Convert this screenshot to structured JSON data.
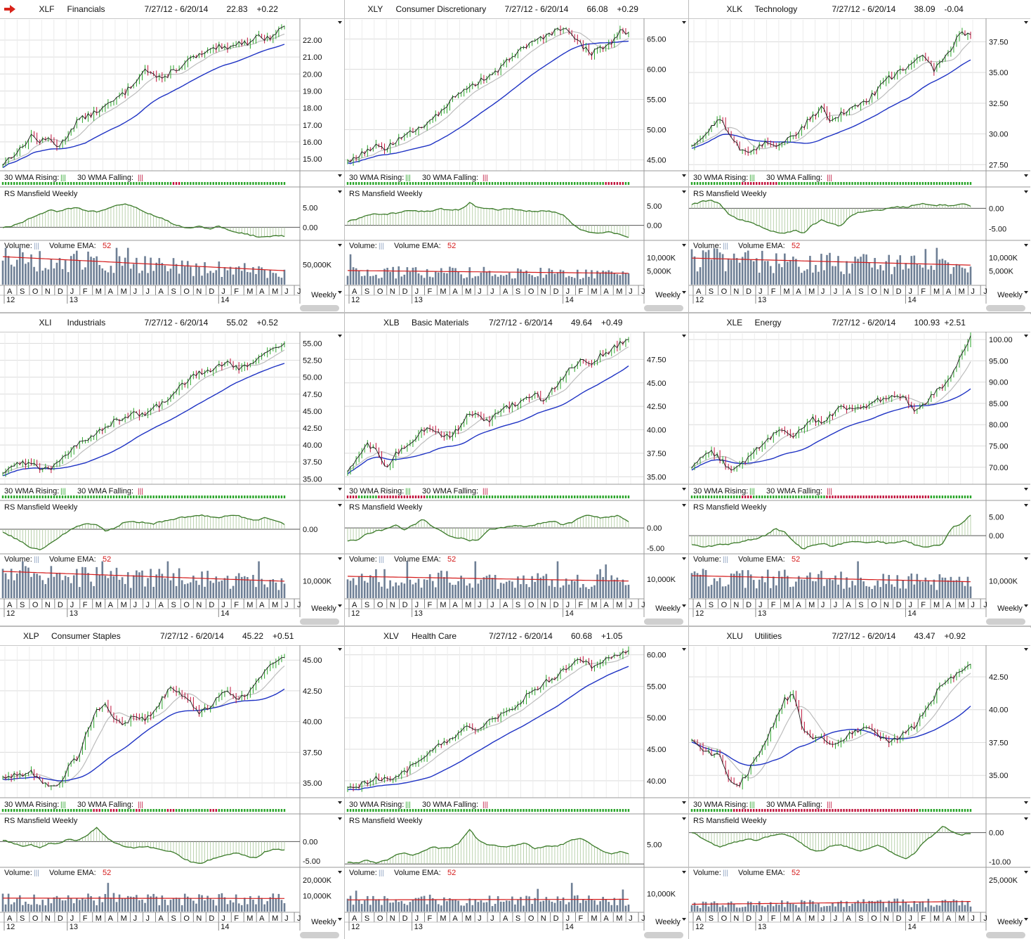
{
  "date_range": "7/27/12 - 6/20/14",
  "labels": {
    "wma_rising": "30 WMA Rising:",
    "wma_falling": "30 WMA Falling:",
    "rs": "RS Mansfield Weekly",
    "volume": "Volume:",
    "volume_ema": "Volume EMA:",
    "ema_period": "52",
    "period": "Weekly"
  },
  "x_axis": {
    "months": [
      "A",
      "S",
      "O",
      "N",
      "D",
      "J",
      "F",
      "M",
      "A",
      "M",
      "J",
      "J",
      "A",
      "S",
      "O",
      "N",
      "D",
      "J",
      "F",
      "M",
      "A",
      "M",
      "J",
      "J"
    ],
    "years": [
      "12",
      "13",
      "14"
    ]
  },
  "colors": {
    "price_ma_fast": "#bdbdbd",
    "price_ma_slow": "#1f33c4",
    "up_bar": "#2aa52a",
    "down_bar": "#c0143c",
    "rs_line": "#3a7a28",
    "volume_bar": "#6e7f95",
    "volume_ema": "#d41a1a",
    "alert_arrow": "#d9241b"
  },
  "chart_data": [
    {
      "type": "line",
      "symbol": "XLF",
      "name": "Financials",
      "last": "22.83",
      "change": "+0.22",
      "flag": true,
      "prices": [
        14.7,
        15.2,
        15.6,
        16.4,
        16.0,
        16.2,
        15.7,
        16.5,
        17.3,
        17.5,
        17.8,
        18.1,
        18.5,
        18.9,
        19.5,
        20.3,
        20.0,
        19.6,
        20.2,
        20.4,
        20.9,
        21.1,
        21.3,
        21.6,
        21.4,
        21.9,
        21.8,
        22.3,
        22.0,
        22.4,
        22.83
      ],
      "price_ticks": [
        "22.00",
        "21.00",
        "20.00",
        "19.00",
        "18.00",
        "17.00",
        "16.00",
        "15.00"
      ],
      "price_tick_values": [
        22,
        21,
        20,
        19,
        18,
        17,
        16,
        15
      ],
      "price_range": [
        14.3,
        23.2
      ],
      "wma_falling_weeks": [
        60,
        61,
        62
      ],
      "rs": [
        -0.2,
        0.3,
        1.2,
        2.5,
        3.5,
        4.4,
        4.0,
        4.8,
        5.0,
        4.2,
        4.0,
        4.6,
        5.6,
        6.0,
        5.2,
        4.1,
        3.0,
        2.3,
        1.0,
        0.2,
        -0.3,
        0.2,
        -0.4,
        0.3,
        -0.8,
        -1.3,
        -1.8,
        -2.3,
        -2.6,
        -2.1,
        -2.3
      ],
      "rs_ticks": [
        "5.00",
        "0.00"
      ],
      "rs_tick_values": [
        5,
        0
      ],
      "rs_range": [
        -3,
        8
      ],
      "vol_ticks": [
        "50,000K"
      ],
      "vol_tick_values": [
        50000
      ],
      "vol_range": [
        0,
        95000
      ],
      "vol_base": 70000,
      "vol_end": 35000
    },
    {
      "type": "line",
      "symbol": "XLY",
      "name": "Consumer Discretionary",
      "last": "66.08",
      "change": "+0.29",
      "flag": false,
      "prices": [
        44.8,
        45.5,
        46.6,
        47.2,
        46.9,
        47.8,
        48.8,
        49.8,
        50.6,
        52.1,
        53.0,
        54.8,
        56.1,
        56.8,
        57.9,
        58.9,
        59.6,
        61.3,
        62.6,
        63.7,
        64.5,
        65.3,
        66.1,
        66.7,
        65.6,
        63.9,
        62.6,
        63.5,
        64.1,
        66.2,
        66.08
      ],
      "price_ticks": [
        "65.00",
        "60.00",
        "55.00",
        "50.00",
        "45.00"
      ],
      "price_tick_values": [
        65,
        60,
        55,
        50,
        45
      ],
      "price_range": [
        43.2,
        68.2
      ],
      "wma_falling_weeks": [
        91,
        92,
        93,
        94,
        95,
        96,
        97
      ],
      "rs": [
        1.0,
        1.5,
        2.6,
        2.9,
        2.8,
        3.1,
        3.6,
        3.9,
        3.5,
        3.8,
        4.2,
        4.0,
        3.9,
        5.8,
        4.5,
        4.3,
        4.0,
        4.4,
        4.1,
        3.7,
        3.6,
        3.8,
        3.4,
        2.7,
        0.3,
        -1.2,
        -1.9,
        -2.0,
        -1.7,
        -2.4,
        -3.0
      ],
      "rs_ticks": [
        "5.00",
        "0.00"
      ],
      "rs_tick_values": [
        5,
        0
      ],
      "rs_range": [
        -3.5,
        7.5
      ],
      "vol_ticks": [
        "10,000K",
        "5,000K"
      ],
      "vol_tick_values": [
        10000,
        5000
      ],
      "vol_range": [
        0,
        14000
      ],
      "vol_base": 5200,
      "vol_end": 4200
    },
    {
      "type": "line",
      "symbol": "XLK",
      "name": "Technology",
      "last": "38.09",
      "change": "-0.04",
      "flag": false,
      "prices": [
        28.8,
        29.6,
        30.5,
        31.3,
        30.2,
        28.9,
        28.3,
        28.8,
        29.3,
        29.1,
        29.5,
        29.9,
        30.6,
        31.5,
        32.1,
        31.1,
        31.6,
        31.9,
        32.3,
        32.8,
        33.6,
        34.5,
        34.8,
        35.4,
        35.9,
        36.3,
        35.2,
        36.1,
        37.0,
        38.3,
        38.09
      ],
      "price_ticks": [
        "37.50",
        "35.00",
        "32.50",
        "30.00",
        "27.50"
      ],
      "price_tick_values": [
        37.5,
        35,
        32.5,
        30,
        27.5
      ],
      "price_range": [
        27.0,
        39.3
      ],
      "wma_falling_weeks": [
        18,
        19,
        20,
        21,
        22,
        23,
        24,
        25,
        26,
        27,
        28,
        29,
        30
      ],
      "rs": [
        0.9,
        1.6,
        2.1,
        1.0,
        -1.4,
        -2.7,
        -3.2,
        -4.1,
        -5.0,
        -5.9,
        -6.2,
        -5.3,
        -6.1,
        -4.1,
        -2.8,
        -3.8,
        -4.3,
        -2.1,
        -1.0,
        -0.5,
        -0.6,
        -0.1,
        0.5,
        0.2,
        0.8,
        1.2,
        0.7,
        0.9,
        0.6,
        1.2,
        0.6
      ],
      "rs_ticks": [
        "0.00",
        "-5.00"
      ],
      "rs_tick_values": [
        0,
        -5
      ],
      "rs_range": [
        -7.5,
        3.0
      ],
      "vol_ticks": [
        "10,000K",
        "5,000K"
      ],
      "vol_tick_values": [
        10000,
        5000
      ],
      "vol_range": [
        0,
        14000
      ],
      "vol_base": 9800,
      "vol_end": 7200
    },
    {
      "type": "line",
      "symbol": "XLI",
      "name": "Industrials",
      "last": "55.02",
      "change": "+0.52",
      "flag": false,
      "prices": [
        35.9,
        36.8,
        37.4,
        37.2,
        36.7,
        36.5,
        37.9,
        38.7,
        40.1,
        40.8,
        41.7,
        42.8,
        43.6,
        44.2,
        44.7,
        44.3,
        45.5,
        46.1,
        46.9,
        48.8,
        49.9,
        50.6,
        51.1,
        51.8,
        52.4,
        51.3,
        51.9,
        52.4,
        53.6,
        54.5,
        55.02
      ],
      "price_ticks": [
        "55.00",
        "52.50",
        "50.00",
        "47.50",
        "45.00",
        "42.50",
        "40.00",
        "37.50",
        "35.00"
      ],
      "price_tick_values": [
        55,
        52.5,
        50,
        47.5,
        45,
        42.5,
        40,
        37.5,
        35
      ],
      "price_range": [
        34.2,
        56.5
      ],
      "wma_falling_weeks": [],
      "rs": [
        -1.0,
        -2.1,
        -3.5,
        -5.2,
        -5.8,
        -4.1,
        -2.2,
        -0.6,
        1.0,
        1.6,
        1.2,
        -0.5,
        0.4,
        2.1,
        2.0,
        1.9,
        1.5,
        2.2,
        2.6,
        3.3,
        3.5,
        3.9,
        3.6,
        3.2,
        3.8,
        3.9,
        3.0,
        2.5,
        3.4,
        2.3,
        1.4
      ],
      "rs_ticks": [
        "0.00"
      ],
      "rs_tick_values": [
        0
      ],
      "rs_range": [
        -6.5,
        5.5
      ],
      "vol_ticks": [
        "10,000K"
      ],
      "vol_tick_values": [
        10000
      ],
      "vol_range": [
        0,
        22000
      ],
      "vol_base": 15500,
      "vol_end": 9800
    },
    {
      "type": "line",
      "symbol": "XLB",
      "name": "Basic Materials",
      "last": "49.64",
      "change": "+0.49",
      "flag": false,
      "prices": [
        35.4,
        36.8,
        38.5,
        37.8,
        35.8,
        37.3,
        38.1,
        38.8,
        39.9,
        40.1,
        39.6,
        39.3,
        40.4,
        41.9,
        41.5,
        40.8,
        41.9,
        42.4,
        42.8,
        43.4,
        43.8,
        43.1,
        44.5,
        45.6,
        46.7,
        47.5,
        47.2,
        47.9,
        48.4,
        49.1,
        49.64
      ],
      "price_ticks": [
        "47.50",
        "45.00",
        "42.50",
        "40.00",
        "37.50",
        "35.00"
      ],
      "price_tick_values": [
        47.5,
        45,
        42.5,
        40,
        37.5,
        35
      ],
      "price_range": [
        34.2,
        50.3
      ],
      "wma_falling_weeks": [
        0,
        1,
        2,
        3,
        11,
        12,
        13,
        14,
        15,
        16,
        17,
        18,
        19,
        20,
        21,
        22,
        23,
        24,
        25,
        26,
        27
      ],
      "rs": [
        -3.2,
        -2.9,
        -1.6,
        -0.8,
        -0.4,
        0.8,
        -0.4,
        0.6,
        2.1,
        0.5,
        -0.7,
        -2.3,
        -2.5,
        -3.1,
        -2.8,
        -0.4,
        -0.1,
        0.3,
        0.6,
        0.2,
        0.8,
        1.3,
        1.6,
        0.8,
        1.4,
        2.9,
        3.1,
        2.5,
        2.7,
        3.0,
        1.6
      ],
      "rs_ticks": [
        "0.00",
        "-5.00"
      ],
      "rs_tick_values": [
        0,
        -5
      ],
      "rs_range": [
        -6.0,
        4.5
      ],
      "vol_ticks": [
        "10,000K"
      ],
      "vol_tick_values": [
        10000
      ],
      "vol_range": [
        0,
        20000
      ],
      "vol_base": 11500,
      "vol_end": 9000
    },
    {
      "type": "line",
      "symbol": "XLE",
      "name": "Energy",
      "last": "100.93",
      "change": "+2.51",
      "flag": false,
      "prices": [
        70.3,
        71.8,
        73.6,
        72.1,
        69.4,
        69.8,
        72.3,
        74.7,
        76.1,
        78.2,
        78.6,
        77.4,
        79.8,
        81.4,
        80.2,
        82.3,
        83.9,
        83.5,
        84.2,
        84.8,
        86.1,
        85.8,
        87.4,
        86.2,
        83.1,
        84.9,
        87.5,
        88.8,
        91.5,
        96.2,
        100.93
      ],
      "price_ticks": [
        "100.00",
        "95.00",
        "90.00",
        "85.00",
        "80.00",
        "75.00",
        "70.00"
      ],
      "price_tick_values": [
        100,
        95,
        90,
        85,
        80,
        75,
        70
      ],
      "price_range": [
        66.0,
        101.5
      ],
      "wma_falling_weeks": [
        18,
        19,
        20,
        21,
        48,
        49,
        50,
        51,
        52,
        53,
        54,
        55,
        56,
        57,
        58,
        59,
        60,
        61,
        62,
        63,
        64,
        65,
        66,
        67,
        68,
        69,
        70,
        71,
        72,
        73,
        74,
        75,
        76,
        77,
        78,
        79,
        80,
        81,
        82,
        83,
        84
      ],
      "rs": [
        -2.5,
        -2.9,
        -2.8,
        -2.2,
        -2.3,
        -1.8,
        -1.2,
        -0.8,
        0.2,
        1.8,
        1.1,
        -1.8,
        -3.6,
        -2.5,
        -2.1,
        -2.8,
        -2.2,
        -1.5,
        -1.6,
        -1.9,
        -1.5,
        -2.1,
        -1.8,
        -1.3,
        -2.4,
        -3.2,
        -2.8,
        -2.2,
        2.3,
        3.1,
        5.6
      ],
      "rs_ticks": [
        "5.00",
        "0.00"
      ],
      "rs_tick_values": [
        5,
        0
      ],
      "rs_range": [
        -4.5,
        7.0
      ],
      "vol_ticks": [
        "10,000K"
      ],
      "vol_tick_values": [
        10000
      ],
      "vol_range": [
        0,
        22000
      ],
      "vol_base": 13000,
      "vol_end": 9500
    },
    {
      "type": "line",
      "symbol": "XLP",
      "name": "Consumer Staples",
      "last": "45.22",
      "change": "+0.51",
      "flag": false,
      "prices": [
        35.5,
        35.6,
        35.7,
        36.1,
        35.1,
        34.7,
        34.8,
        36.4,
        37.1,
        39.2,
        40.8,
        41.3,
        40.1,
        39.8,
        40.5,
        40.2,
        40.7,
        41.9,
        42.8,
        42.3,
        41.6,
        40.7,
        41.2,
        42.1,
        42.6,
        41.7,
        42.3,
        43.1,
        44.0,
        44.9,
        45.22
      ],
      "price_ticks": [
        "45.00",
        "42.50",
        "40.00",
        "37.50",
        "35.00"
      ],
      "price_tick_values": [
        45,
        42.5,
        40,
        37.5,
        35
      ],
      "price_range": [
        33.8,
        46.1
      ],
      "wma_falling_weeks": [
        32,
        33,
        34,
        38,
        39,
        40,
        47,
        48,
        58,
        59,
        60,
        73,
        74,
        75
      ],
      "rs": [
        0.4,
        -0.3,
        -1.2,
        -0.8,
        -1.7,
        -0.4,
        -0.5,
        0.6,
        0.3,
        1.5,
        3.8,
        1.2,
        -0.4,
        -1.3,
        -1.7,
        -1.3,
        -1.6,
        -2.2,
        -2.5,
        -4.1,
        -5.2,
        -5.7,
        -4.8,
        -3.9,
        -3.5,
        -2.8,
        -3.9,
        -4.1,
        -2.6,
        -1.9,
        -2.1
      ],
      "rs_ticks": [
        "0.00",
        "-5.00"
      ],
      "rs_tick_values": [
        0,
        -5
      ],
      "rs_range": [
        -6.3,
        4.8
      ],
      "vol_ticks": [
        "20,000K",
        "10,000K"
      ],
      "vol_tick_values": [
        20000,
        10000
      ],
      "vol_range": [
        0,
        24000
      ],
      "vol_base": 8500,
      "vol_end": 8300
    },
    {
      "type": "line",
      "symbol": "XLV",
      "name": "Health Care",
      "last": "60.68",
      "change": "+1.05",
      "flag": false,
      "prices": [
        38.6,
        39.2,
        39.7,
        40.5,
        40.3,
        40.6,
        41.2,
        42.6,
        43.4,
        44.6,
        45.8,
        46.4,
        47.9,
        48.6,
        48.3,
        49.3,
        50.1,
        50.8,
        51.9,
        53.4,
        54.4,
        55.6,
        56.3,
        57.5,
        58.6,
        59.4,
        58.2,
        58.9,
        59.7,
        60.3,
        60.68
      ],
      "price_ticks": [
        "60.00",
        "55.00",
        "50.00",
        "45.00",
        "40.00"
      ],
      "price_tick_values": [
        60,
        55,
        50,
        45,
        40
      ],
      "price_range": [
        37.3,
        61.3
      ],
      "wma_falling_weeks": [],
      "rs": [
        0.4,
        0.2,
        1.1,
        0.3,
        0.8,
        2.2,
        2.9,
        2.1,
        3.2,
        4.4,
        4.0,
        4.1,
        5.6,
        8.9,
        6.0,
        4.8,
        4.7,
        4.2,
        4.9,
        5.4,
        3.8,
        4.6,
        4.4,
        5.1,
        6.2,
        6.4,
        5.0,
        3.5,
        2.6,
        3.2,
        2.7
      ],
      "rs_ticks": [
        "5.00"
      ],
      "rs_tick_values": [
        5
      ],
      "rs_range": [
        -0.5,
        10.5
      ],
      "vol_ticks": [
        "10,000K"
      ],
      "vol_tick_values": [
        10000
      ],
      "vol_range": [
        0,
        21000
      ],
      "vol_base": 6500,
      "vol_end": 6800
    },
    {
      "type": "line",
      "symbol": "XLU",
      "name": "Utilities",
      "last": "43.47",
      "change": "+0.92",
      "flag": false,
      "prices": [
        37.8,
        37.1,
        36.6,
        36.8,
        34.6,
        34.1,
        35.2,
        36.4,
        37.8,
        39.2,
        40.8,
        41.1,
        38.2,
        37.9,
        38.1,
        37.2,
        37.4,
        38.2,
        38.4,
        38.6,
        38.1,
        37.6,
        37.8,
        38.3,
        38.7,
        39.8,
        40.9,
        41.9,
        42.4,
        42.8,
        43.47
      ],
      "price_ticks": [
        "42.50",
        "40.00",
        "37.50",
        "35.00"
      ],
      "price_tick_values": [
        42.5,
        40,
        37.5,
        35
      ],
      "price_range": [
        33.3,
        44.8
      ],
      "wma_falling_weeks": [
        15,
        16,
        17,
        18,
        19,
        20,
        21,
        22,
        23,
        24,
        25,
        26,
        27,
        28,
        29,
        30,
        31,
        32,
        33,
        34,
        35,
        36,
        37,
        38,
        39,
        40,
        41,
        42,
        43,
        44,
        45,
        46,
        47,
        48,
        49,
        50,
        51,
        52,
        53,
        54,
        55,
        56,
        57,
        58,
        59,
        60,
        61,
        62,
        63,
        64,
        65,
        66,
        67,
        68,
        69,
        70,
        71,
        72,
        73,
        74,
        75,
        76,
        77,
        78,
        79,
        80
      ],
      "rs": [
        0.2,
        -1.6,
        -3.4,
        -5.1,
        -3.7,
        -3.2,
        -2.1,
        -2.6,
        -1.6,
        -0.6,
        -0.7,
        -1.8,
        -4.3,
        -6.1,
        -6.4,
        -4.5,
        -4.2,
        -5.3,
        -6.6,
        -5.5,
        -4.2,
        -5.7,
        -7.8,
        -8.9,
        -7.2,
        -3.1,
        -0.7,
        2.3,
        0.2,
        -0.8,
        -0.3
      ],
      "rs_ticks": [
        "0.00",
        "-10.00"
      ],
      "rs_tick_values": [
        0,
        -10
      ],
      "rs_range": [
        -11.5,
        3.3
      ],
      "vol_ticks": [
        "25,000K"
      ],
      "vol_tick_values": [
        25000
      ],
      "vol_range": [
        0,
        30000
      ],
      "vol_base": 5800,
      "vol_end": 8000
    }
  ]
}
